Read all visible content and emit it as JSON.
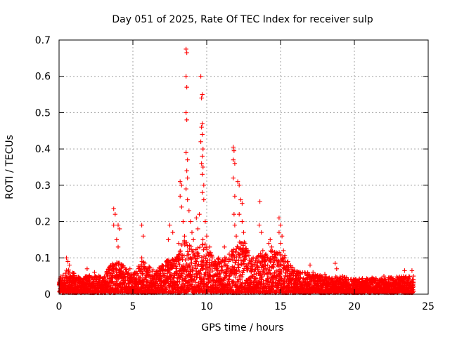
{
  "chart_data": {
    "type": "scatter",
    "title": "Day 051 of 2025, Rate Of TEC Index for receiver sulp",
    "xlabel": "GPS time / hours",
    "ylabel": "ROTI / TECUs",
    "xlim": [
      0,
      25
    ],
    "ylim": [
      0,
      0.7
    ],
    "xticks": [
      0,
      5,
      10,
      15,
      20,
      25
    ],
    "yticks": [
      0,
      0.1,
      0.2,
      0.3,
      0.4,
      0.5,
      0.6,
      0.7
    ],
    "grid": true,
    "marker": "+",
    "color": "#ff0000",
    "series": [
      {
        "name": "ROTI",
        "points": [
          [
            0.5,
            0.1
          ],
          [
            0.6,
            0.09
          ],
          [
            0.7,
            0.08
          ],
          [
            1.9,
            0.07
          ],
          [
            2.4,
            0.06
          ],
          [
            3.7,
            0.235
          ],
          [
            3.8,
            0.22
          ],
          [
            3.7,
            0.19
          ],
          [
            4.0,
            0.19
          ],
          [
            4.1,
            0.18
          ],
          [
            3.9,
            0.15
          ],
          [
            4.0,
            0.13
          ],
          [
            4.2,
            0.08
          ],
          [
            4.8,
            0.07
          ],
          [
            5.6,
            0.19
          ],
          [
            5.7,
            0.16
          ],
          [
            5.6,
            0.1
          ],
          [
            6.0,
            0.07
          ],
          [
            7.4,
            0.15
          ],
          [
            7.5,
            0.19
          ],
          [
            7.7,
            0.17
          ],
          [
            8.0,
            0.1
          ],
          [
            8.1,
            0.14
          ],
          [
            8.2,
            0.31
          ],
          [
            8.3,
            0.3
          ],
          [
            8.2,
            0.27
          ],
          [
            8.3,
            0.24
          ],
          [
            8.4,
            0.2
          ],
          [
            8.5,
            0.16
          ],
          [
            8.6,
            0.675
          ],
          [
            8.65,
            0.665
          ],
          [
            8.6,
            0.6
          ],
          [
            8.65,
            0.57
          ],
          [
            8.6,
            0.5
          ],
          [
            8.65,
            0.48
          ],
          [
            8.6,
            0.39
          ],
          [
            8.7,
            0.37
          ],
          [
            8.65,
            0.34
          ],
          [
            8.7,
            0.32
          ],
          [
            8.6,
            0.29
          ],
          [
            8.7,
            0.26
          ],
          [
            8.8,
            0.23
          ],
          [
            8.9,
            0.2
          ],
          [
            9.0,
            0.17
          ],
          [
            9.1,
            0.15
          ],
          [
            9.3,
            0.21
          ],
          [
            9.4,
            0.18
          ],
          [
            9.5,
            0.22
          ],
          [
            9.6,
            0.6
          ],
          [
            9.7,
            0.55
          ],
          [
            9.65,
            0.54
          ],
          [
            9.7,
            0.47
          ],
          [
            9.65,
            0.46
          ],
          [
            9.7,
            0.44
          ],
          [
            9.6,
            0.42
          ],
          [
            9.75,
            0.4
          ],
          [
            9.7,
            0.38
          ],
          [
            9.65,
            0.36
          ],
          [
            9.75,
            0.35
          ],
          [
            9.7,
            0.33
          ],
          [
            9.8,
            0.3
          ],
          [
            9.7,
            0.28
          ],
          [
            9.8,
            0.26
          ],
          [
            9.9,
            0.2
          ],
          [
            10.0,
            0.16
          ],
          [
            10.2,
            0.13
          ],
          [
            10.8,
            0.1
          ],
          [
            11.2,
            0.13
          ],
          [
            11.5,
            0.09
          ],
          [
            11.8,
            0.405
          ],
          [
            11.85,
            0.395
          ],
          [
            11.8,
            0.37
          ],
          [
            11.9,
            0.36
          ],
          [
            11.8,
            0.32
          ],
          [
            11.9,
            0.27
          ],
          [
            11.85,
            0.22
          ],
          [
            11.9,
            0.19
          ],
          [
            12.0,
            0.16
          ],
          [
            12.1,
            0.31
          ],
          [
            12.2,
            0.3
          ],
          [
            12.3,
            0.26
          ],
          [
            12.4,
            0.25
          ],
          [
            12.2,
            0.22
          ],
          [
            12.4,
            0.2
          ],
          [
            12.5,
            0.17
          ],
          [
            12.6,
            0.14
          ],
          [
            12.7,
            0.12
          ],
          [
            13.0,
            0.09
          ],
          [
            13.6,
            0.255
          ],
          [
            13.55,
            0.19
          ],
          [
            13.7,
            0.17
          ],
          [
            13.8,
            0.12
          ],
          [
            14.0,
            0.11
          ],
          [
            14.3,
            0.15
          ],
          [
            14.2,
            0.14
          ],
          [
            14.4,
            0.13
          ],
          [
            14.9,
            0.21
          ],
          [
            15.0,
            0.19
          ],
          [
            14.9,
            0.17
          ],
          [
            15.1,
            0.16
          ],
          [
            15.0,
            0.14
          ],
          [
            15.2,
            0.12
          ],
          [
            15.3,
            0.1
          ],
          [
            15.5,
            0.09
          ],
          [
            16.2,
            0.06
          ],
          [
            17.0,
            0.08
          ],
          [
            17.2,
            0.06
          ],
          [
            17.8,
            0.05
          ],
          [
            18.0,
            0.055
          ],
          [
            18.7,
            0.085
          ],
          [
            18.8,
            0.07
          ],
          [
            19.2,
            0.05
          ],
          [
            20.5,
            0.04
          ],
          [
            21.2,
            0.045
          ],
          [
            22.0,
            0.05
          ],
          [
            23.0,
            0.045
          ],
          [
            23.4,
            0.065
          ],
          [
            23.9,
            0.065
          ],
          [
            24.0,
            0.05
          ]
        ],
        "baseline_band": [
          [
            0,
            0.045
          ],
          [
            0.4,
            0.05
          ],
          [
            0.5,
            0.07
          ],
          [
            0.8,
            0.06
          ],
          [
            1.5,
            0.04
          ],
          [
            2.0,
            0.05
          ],
          [
            3.0,
            0.045
          ],
          [
            3.6,
            0.09
          ],
          [
            4.2,
            0.08
          ],
          [
            5.0,
            0.05
          ],
          [
            5.6,
            0.09
          ],
          [
            6.5,
            0.06
          ],
          [
            7.3,
            0.09
          ],
          [
            8.0,
            0.1
          ],
          [
            8.5,
            0.15
          ],
          [
            9.2,
            0.12
          ],
          [
            9.8,
            0.15
          ],
          [
            10.5,
            0.09
          ],
          [
            11.2,
            0.1
          ],
          [
            11.8,
            0.12
          ],
          [
            12.4,
            0.15
          ],
          [
            13.0,
            0.1
          ],
          [
            13.8,
            0.11
          ],
          [
            14.5,
            0.12
          ],
          [
            15.2,
            0.11
          ],
          [
            16.0,
            0.06
          ],
          [
            17.0,
            0.055
          ],
          [
            18.0,
            0.045
          ],
          [
            19.0,
            0.045
          ],
          [
            20.0,
            0.04
          ],
          [
            21.0,
            0.04
          ],
          [
            22.0,
            0.04
          ],
          [
            23.0,
            0.045
          ],
          [
            24.0,
            0.045
          ]
        ]
      }
    ]
  }
}
